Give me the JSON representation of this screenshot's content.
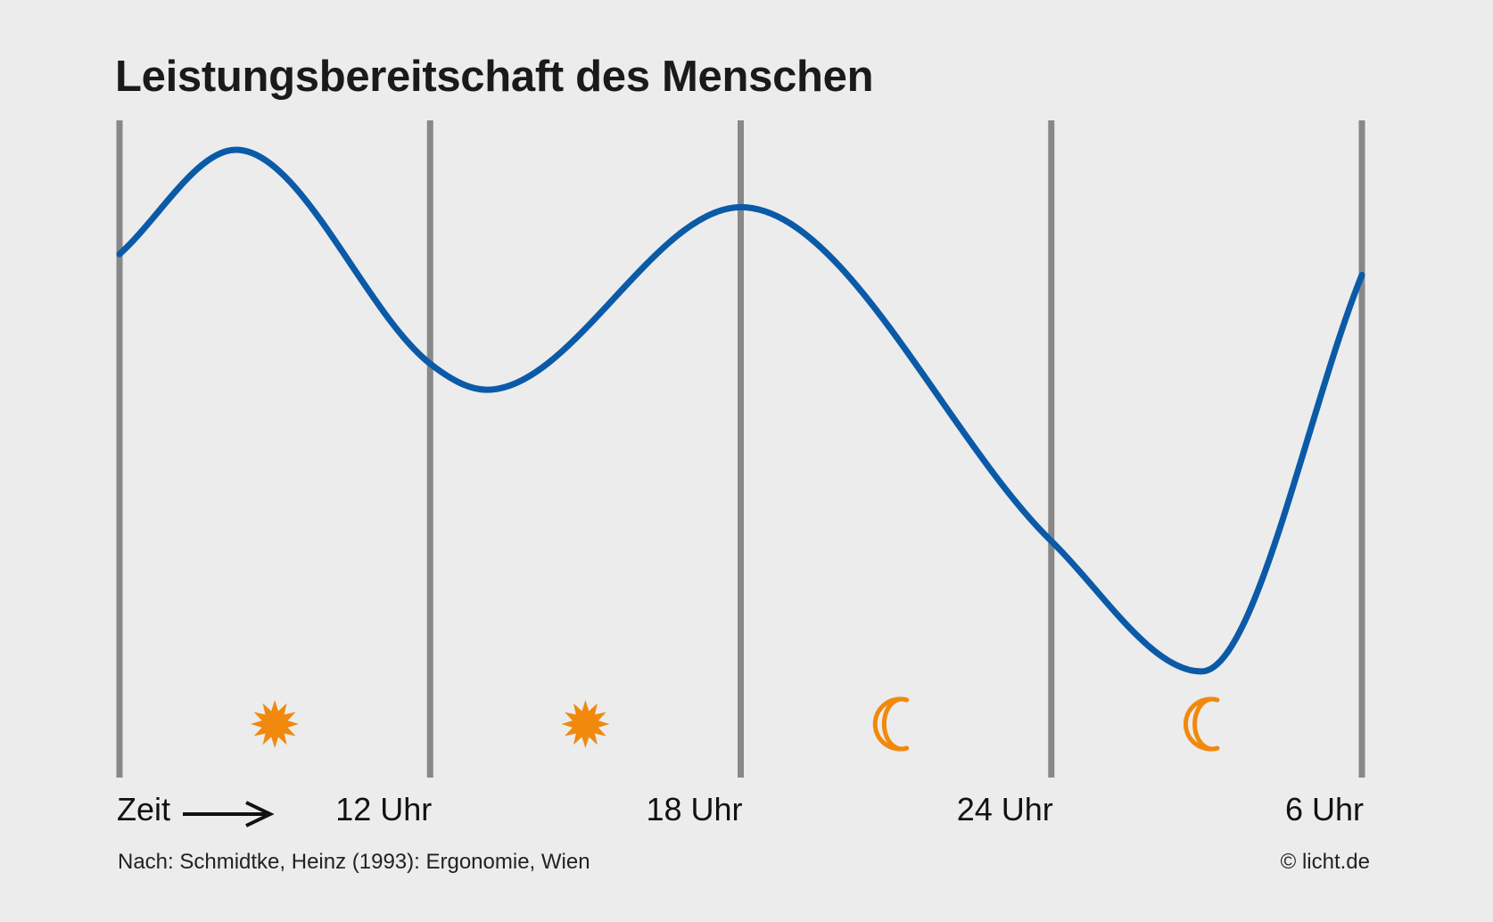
{
  "chart_data": {
    "type": "line",
    "title": "Leistungsbereitschaft des Menschen",
    "xlabel": "Zeit",
    "ylabel": "",
    "x_tick_labels": [
      "12 Uhr",
      "18 Uhr",
      "24 Uhr",
      "6 Uhr"
    ],
    "x_ticks_hours": [
      12,
      18,
      24,
      30
    ],
    "xlim_hours": [
      6,
      30
    ],
    "ylim": [
      0,
      100
    ],
    "series": [
      {
        "color": "#0a5aa8",
        "points": [
          {
            "x": 6.0,
            "y": 80
          },
          {
            "x": 8.25,
            "y": 100
          },
          {
            "x": 12.0,
            "y": 59
          },
          {
            "x": 13.1,
            "y": 54
          },
          {
            "x": 18.0,
            "y": 89
          },
          {
            "x": 24.0,
            "y": 25
          },
          {
            "x": 26.9,
            "y": 0
          },
          {
            "x": 30.0,
            "y": 76
          }
        ]
      }
    ],
    "icons": [
      {
        "name": "sun-icon",
        "x": 9
      },
      {
        "name": "sun-icon",
        "x": 15
      },
      {
        "name": "moon-icon",
        "x": 21
      },
      {
        "name": "moon-icon",
        "x": 27
      }
    ],
    "grid": true,
    "colors": {
      "curve": "#0a5aa8",
      "gridline": "#888888",
      "icon": "#f0890e",
      "background": "#ececec"
    }
  },
  "footer": {
    "source": "Nach: Schmidtke, Heinz (1993): Ergonomie, Wien",
    "copyright": "© licht.de"
  }
}
